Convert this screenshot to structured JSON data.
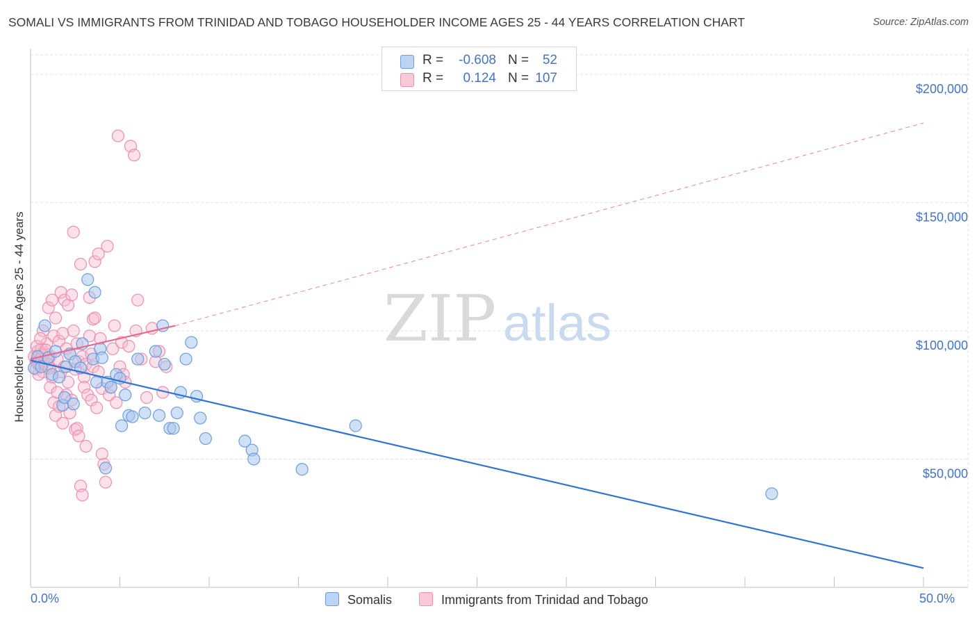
{
  "title": "SOMALI VS IMMIGRANTS FROM TRINIDAD AND TOBAGO HOUSEHOLDER INCOME AGES 25 - 44 YEARS CORRELATION CHART",
  "source": "Source: ZipAtlas.com",
  "watermark": {
    "zip": "ZIP",
    "atlas": "atlas"
  },
  "legend_top": [
    {
      "r_label": "R =",
      "r_value": "-0.608",
      "n_label": "N =",
      "n_value": "52"
    },
    {
      "r_label": "R =",
      "r_value": "0.124",
      "n_label": "N =",
      "n_value": "107"
    }
  ],
  "legend_bottom": {
    "series1": "Somalis",
    "series2": "Immigrants from Trinidad and Tobago"
  },
  "chart_data": {
    "type": "scatter",
    "xlabel": "",
    "ylabel": "Householder Income Ages 25 - 44 years",
    "xlim": [
      0,
      50
    ],
    "ylim": [
      0,
      210000
    ],
    "x_tick_labels": [
      "0.0%",
      "50.0%"
    ],
    "y_ticks": [
      50000,
      100000,
      150000,
      200000
    ],
    "y_tick_labels": [
      "$50,000",
      "$100,000",
      "$150,000",
      "$200,000"
    ],
    "grid": true,
    "colors": {
      "somali_fill": "#a9c6ef",
      "somali_stroke": "#6d9ddb",
      "somali_line": "#2f73d4",
      "tt_fill": "#f7bdd0",
      "tt_stroke": "#ef8fae",
      "tt_line": "#e8688f",
      "grid": "#e3e3e3",
      "axis_label": "#4472c4"
    },
    "series": [
      {
        "name": "Somalis",
        "r": -0.608,
        "n": 52,
        "trend": {
          "x": [
            0,
            50
          ],
          "y": [
            88500,
            7500
          ],
          "style": "solid"
        },
        "points": [
          [
            0.2,
            85500
          ],
          [
            0.4,
            90000
          ],
          [
            0.6,
            86000
          ],
          [
            0.8,
            102000
          ],
          [
            1.0,
            89500
          ],
          [
            1.2,
            83000
          ],
          [
            1.4,
            92000
          ],
          [
            1.6,
            82000
          ],
          [
            1.8,
            71000
          ],
          [
            1.9,
            74000
          ],
          [
            2.0,
            86000
          ],
          [
            2.2,
            91000
          ],
          [
            2.4,
            71500
          ],
          [
            2.5,
            88000
          ],
          [
            2.8,
            85500
          ],
          [
            2.9,
            95000
          ],
          [
            3.2,
            120000
          ],
          [
            3.5,
            89000
          ],
          [
            3.6,
            115000
          ],
          [
            3.7,
            80000
          ],
          [
            3.9,
            93000
          ],
          [
            4.0,
            89500
          ],
          [
            4.2,
            46500
          ],
          [
            4.3,
            80000
          ],
          [
            4.5,
            78000
          ],
          [
            4.8,
            83000
          ],
          [
            5.0,
            81500
          ],
          [
            5.1,
            63000
          ],
          [
            5.3,
            75000
          ],
          [
            5.5,
            67000
          ],
          [
            5.7,
            66500
          ],
          [
            6.0,
            89000
          ],
          [
            6.4,
            68000
          ],
          [
            7.0,
            92000
          ],
          [
            7.2,
            67000
          ],
          [
            7.4,
            102000
          ],
          [
            7.5,
            87000
          ],
          [
            7.8,
            62000
          ],
          [
            8.0,
            62000
          ],
          [
            8.2,
            68000
          ],
          [
            8.4,
            76000
          ],
          [
            8.7,
            89000
          ],
          [
            9.0,
            95500
          ],
          [
            9.3,
            74500
          ],
          [
            9.5,
            66000
          ],
          [
            9.8,
            58000
          ],
          [
            12.0,
            57000
          ],
          [
            12.4,
            53500
          ],
          [
            12.5,
            50000
          ],
          [
            15.2,
            46000
          ],
          [
            18.2,
            63000
          ],
          [
            41.5,
            36500
          ]
        ]
      },
      {
        "name": "Immigrants from Trinidad and Tobago",
        "r": 0.124,
        "n": 107,
        "trend": {
          "x": [
            0,
            8.1
          ],
          "y": [
            89000,
            102000
          ],
          "style": "solid",
          "dashed_to": [
            50,
            181000
          ]
        },
        "points": [
          [
            0.2,
            90000
          ],
          [
            0.3,
            88000
          ],
          [
            0.3,
            85000
          ],
          [
            0.4,
            92000
          ],
          [
            0.4,
            87000
          ],
          [
            0.5,
            91000
          ],
          [
            0.5,
            86500
          ],
          [
            0.6,
            89000
          ],
          [
            0.6,
            93000
          ],
          [
            0.7,
            84000
          ],
          [
            0.7,
            100000
          ],
          [
            0.8,
            88000
          ],
          [
            0.8,
            91500
          ],
          [
            0.9,
            86000
          ],
          [
            0.9,
            95000
          ],
          [
            1.0,
            109000
          ],
          [
            1.0,
            87000
          ],
          [
            1.1,
            90000
          ],
          [
            1.1,
            78000
          ],
          [
            1.2,
            112000
          ],
          [
            1.2,
            82000
          ],
          [
            1.3,
            98000
          ],
          [
            1.3,
            72000
          ],
          [
            1.4,
            67000
          ],
          [
            1.4,
            105000
          ],
          [
            1.5,
            76000
          ],
          [
            1.5,
            89000
          ],
          [
            1.6,
            96000
          ],
          [
            1.6,
            70500
          ],
          [
            1.7,
            115000
          ],
          [
            1.7,
            84000
          ],
          [
            1.8,
            99000
          ],
          [
            1.8,
            64000
          ],
          [
            1.9,
            86000
          ],
          [
            1.9,
            112000
          ],
          [
            2.0,
            75000
          ],
          [
            2.0,
            93000
          ],
          [
            2.1,
            110000
          ],
          [
            2.1,
            80000
          ],
          [
            2.2,
            91000
          ],
          [
            2.2,
            68000
          ],
          [
            2.3,
            73000
          ],
          [
            2.3,
            114000
          ],
          [
            2.4,
            100000
          ],
          [
            2.4,
            138500
          ],
          [
            2.5,
            85000
          ],
          [
            2.5,
            61500
          ],
          [
            2.6,
            95000
          ],
          [
            2.6,
            62000
          ],
          [
            2.7,
            88000
          ],
          [
            2.7,
            59000
          ],
          [
            2.8,
            126000
          ],
          [
            2.8,
            39500
          ],
          [
            2.9,
            36000
          ],
          [
            2.9,
            90000
          ],
          [
            3.0,
            82000
          ],
          [
            3.0,
            78000
          ],
          [
            3.1,
            87000
          ],
          [
            3.1,
            55000
          ],
          [
            3.2,
            75000
          ],
          [
            3.3,
            98000
          ],
          [
            3.3,
            113000
          ],
          [
            3.4,
            91000
          ],
          [
            3.4,
            73000
          ],
          [
            3.5,
            104500
          ],
          [
            3.5,
            86000
          ],
          [
            3.6,
            105000
          ],
          [
            3.6,
            127000
          ],
          [
            3.7,
            70000
          ],
          [
            3.8,
            84000
          ],
          [
            3.8,
            130000
          ],
          [
            3.9,
            97000
          ],
          [
            4.0,
            52000
          ],
          [
            4.0,
            77500
          ],
          [
            4.1,
            48000
          ],
          [
            4.2,
            41000
          ],
          [
            4.3,
            133000
          ],
          [
            4.4,
            75000
          ],
          [
            4.5,
            78000
          ],
          [
            4.6,
            93000
          ],
          [
            4.7,
            102000
          ],
          [
            4.8,
            72000
          ],
          [
            4.9,
            176000
          ],
          [
            5.0,
            86000
          ],
          [
            5.1,
            95500
          ],
          [
            5.2,
            83000
          ],
          [
            5.3,
            80000
          ],
          [
            5.5,
            94000
          ],
          [
            5.6,
            172000
          ],
          [
            5.8,
            168500
          ],
          [
            5.9,
            100000
          ],
          [
            6.0,
            112000
          ],
          [
            6.2,
            89000
          ],
          [
            6.5,
            74000
          ],
          [
            6.8,
            101000
          ],
          [
            7.0,
            88000
          ],
          [
            7.2,
            92000
          ],
          [
            7.4,
            76000
          ],
          [
            7.6,
            86000
          ],
          [
            0.35,
            94000
          ],
          [
            0.45,
            83000
          ],
          [
            0.55,
            97000
          ],
          [
            0.65,
            90500
          ],
          [
            0.75,
            87500
          ],
          [
            0.85,
            92500
          ],
          [
            0.95,
            89500
          ],
          [
            1.05,
            85500
          ]
        ]
      }
    ]
  }
}
